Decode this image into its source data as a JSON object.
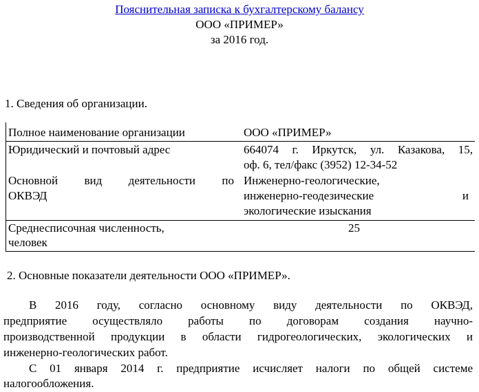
{
  "header": {
    "title": "Пояснительная записка к бухгалтерскому балансу",
    "org": "ООО «ПРИМЕР»",
    "period": "за 2016 год."
  },
  "section1": {
    "heading": "1.  Сведения об организации."
  },
  "table": {
    "name_label": "Полное наименование организации",
    "name_value": "ООО «ПРИМЕР»",
    "address_label": "Юридический и почтовый адрес",
    "address_value_1": "664074 г. Иркутск, ул. Казакова, 15,",
    "address_value_2": "оф. 6, тел/факс (3952) 12-34-52",
    "activity_label_1": "Основной вид деятельности по",
    "activity_label_2": "ОКВЭД",
    "activity_value_1": "Инженерно-геологические,",
    "activity_value_2": "инженерно-геодезические и",
    "activity_value_3": "экологические изыскания",
    "staff_label_1": "Среднесписочная численность,",
    "staff_label_2": "человек",
    "staff_value": "25"
  },
  "section2": {
    "heading": "2. Основные показатели деятельности ООО «ПРИМЕР».",
    "lines": [
      "В 2016 году, согласно основному виду деятельности по ОКВЭД,",
      "предприятие осуществляло работы по договорам создания научно-",
      "производственной продукции в области гидрогеологических, экологических и",
      "инженерно-геологических работ.",
      "С 01 января 2014 г. предприятие исчисляет налоги по общей системе",
      "налогообложения."
    ]
  }
}
